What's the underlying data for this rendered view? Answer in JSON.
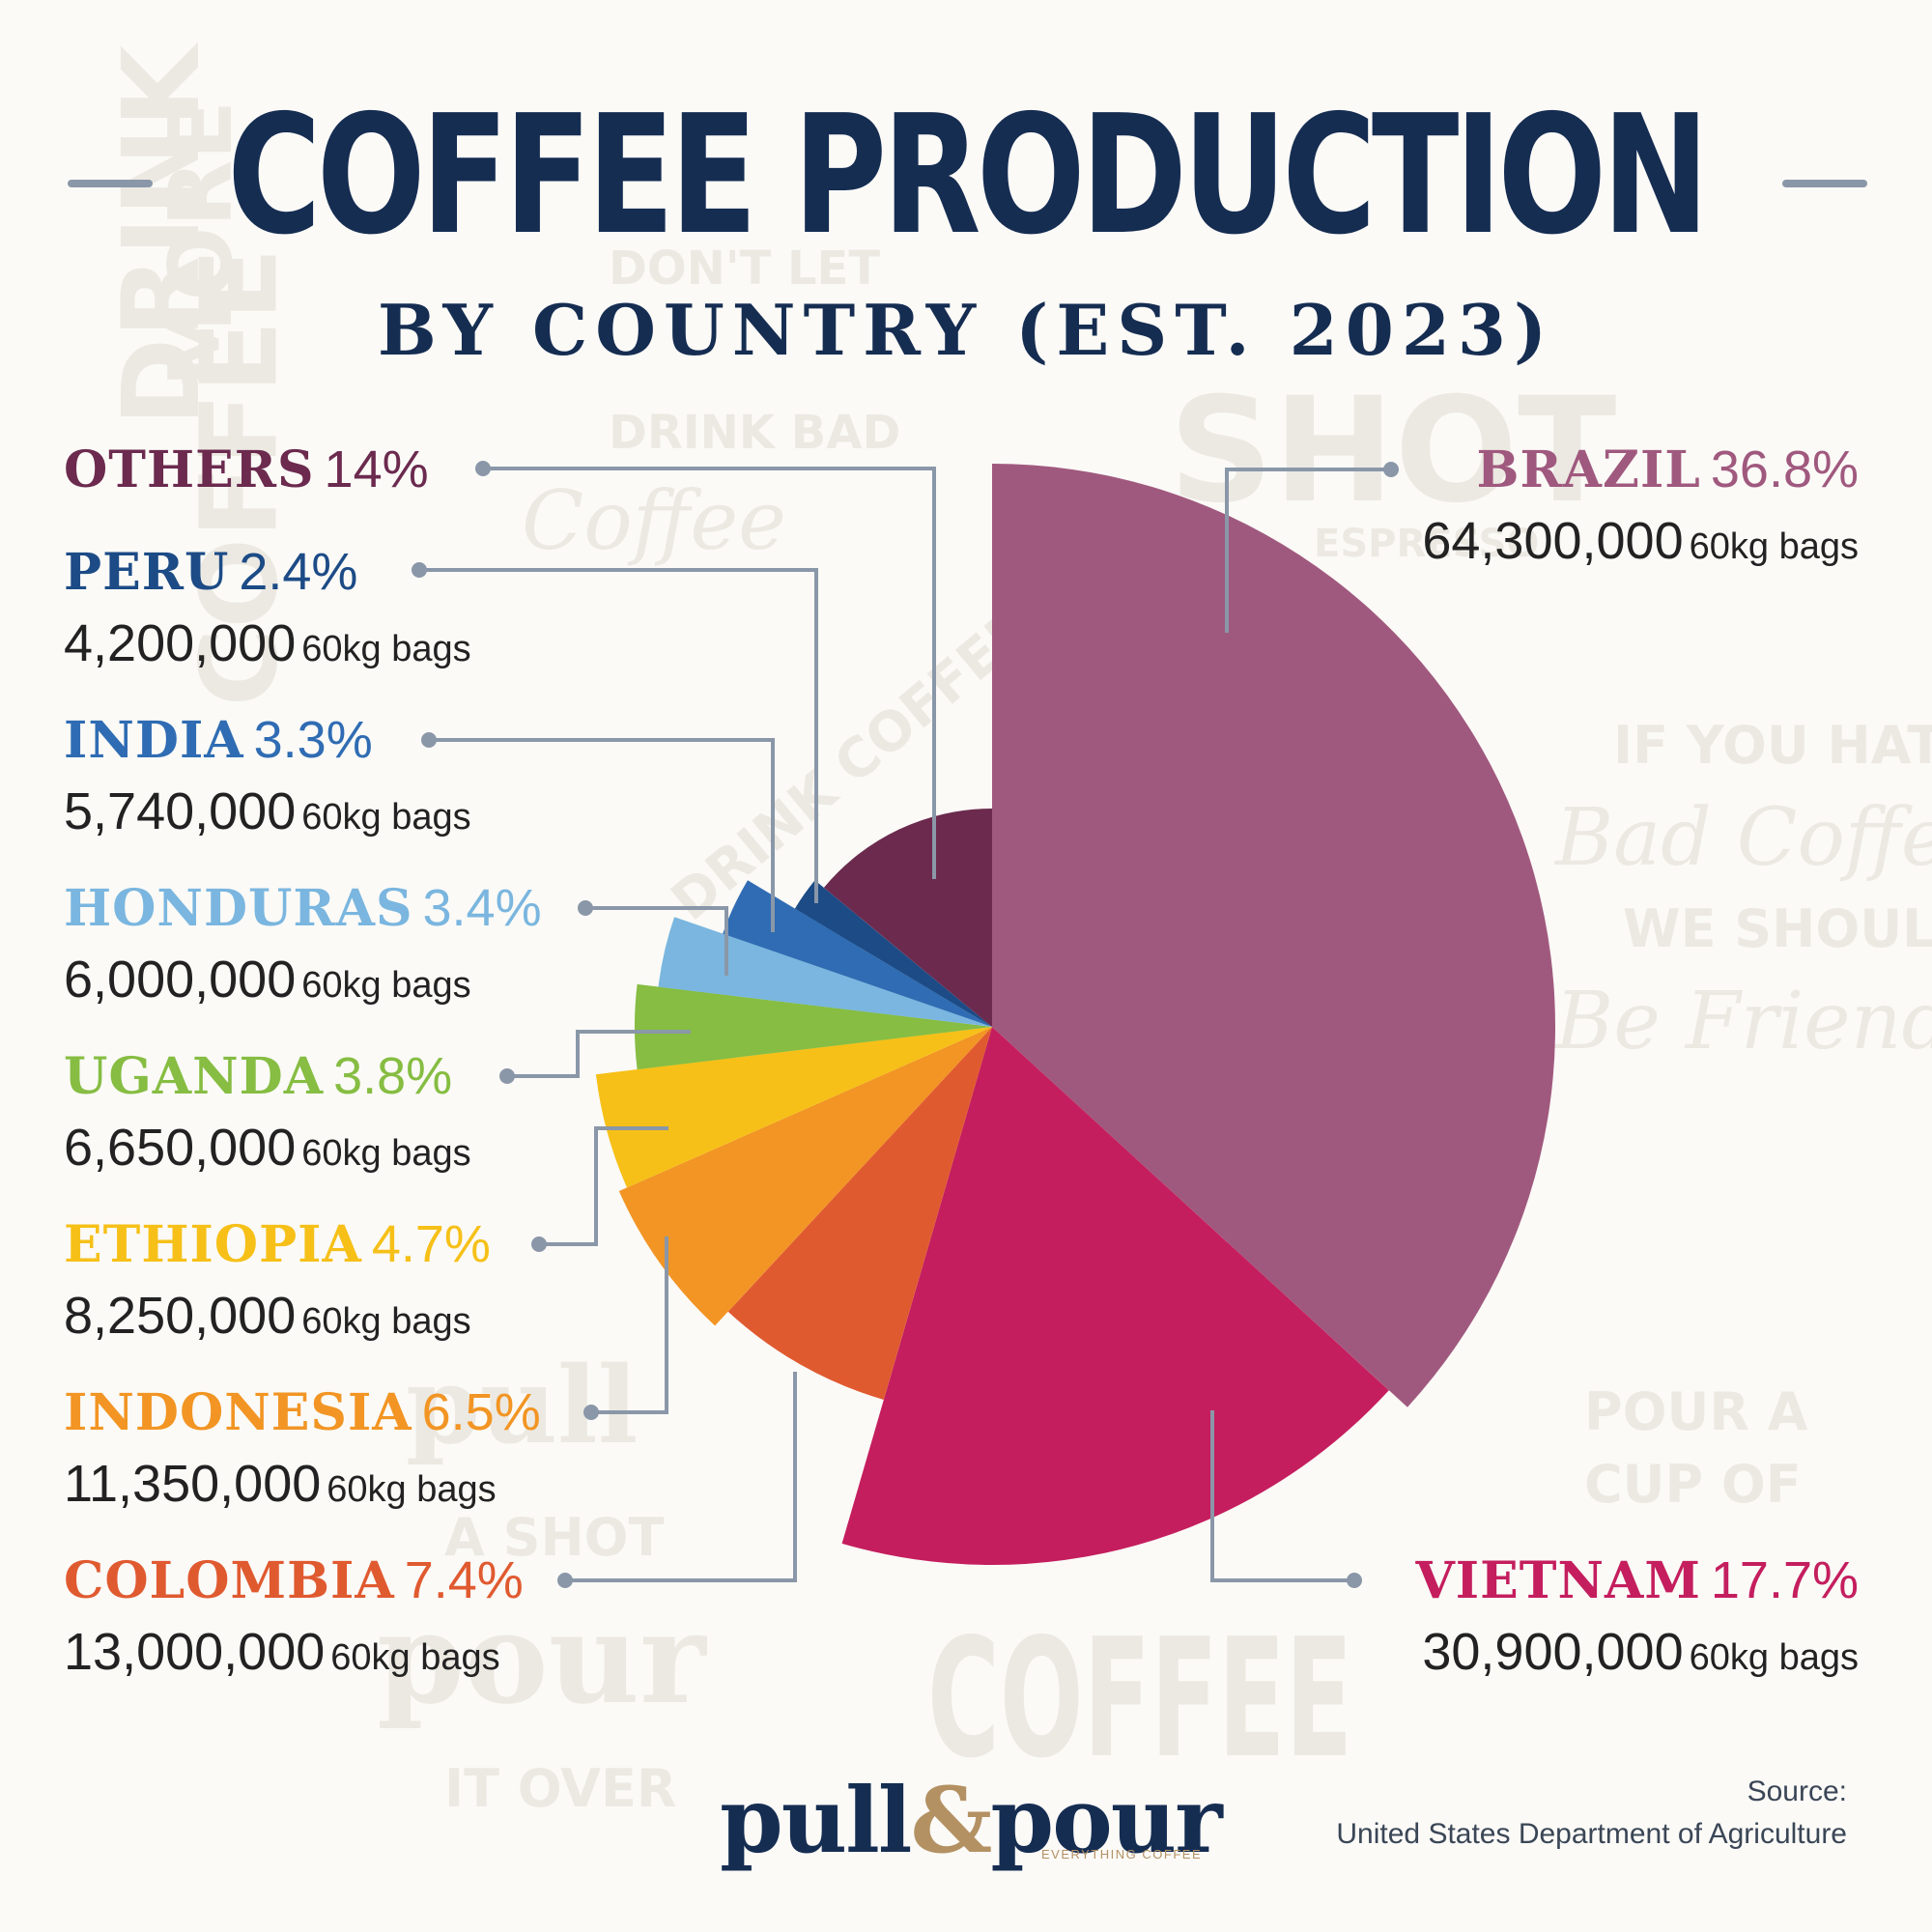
{
  "title": "COFFEE PRODUCTION",
  "subtitle": "BY COUNTRY (EST. 2023)",
  "unit_label": "60kg bags",
  "logo": {
    "name_left": "pull",
    "ampersand": "&",
    "name_right": "pour",
    "tagline": "EVERYTHING COFFEE"
  },
  "source": {
    "label": "Source:",
    "text": "United States Department of Agriculture"
  },
  "watermarks": [
    "DRINK",
    "MORE",
    "COFFEE",
    "DON'T LET",
    "DRINK BAD",
    "Coffee",
    "SHOT",
    "ESPRESSO",
    "IF YOU HATE",
    "Bad Coffee",
    "WE SHOULD",
    "Be Friends",
    "POUR A",
    "CUP OF",
    "A SHOT",
    "IT OVER",
    "COFFEE",
    "pull",
    "pour",
    "DRINK COFFEE"
  ],
  "colors": {
    "title": "#162d52",
    "leader": "#8a97a8",
    "logo_accent": "#b49163"
  },
  "chart_data": {
    "type": "pie",
    "title": "COFFEE PRODUCTION",
    "subtitle": "BY COUNTRY (EST. 2023)",
    "unit": "60kg bags",
    "slices": [
      {
        "name": "BRAZIL",
        "percent": 36.8,
        "pct_label": "36.8%",
        "bags": 64300000,
        "bags_label": "64,300,000",
        "color": "#a0597e"
      },
      {
        "name": "VIETNAM",
        "percent": 17.7,
        "pct_label": "17.7%",
        "bags": 30900000,
        "bags_label": "30,900,000",
        "color": "#c41e5e"
      },
      {
        "name": "COLOMBIA",
        "percent": 7.4,
        "pct_label": "7.4%",
        "bags": 13000000,
        "bags_label": "13,000,000",
        "color": "#e05a30"
      },
      {
        "name": "INDONESIA",
        "percent": 6.5,
        "pct_label": "6.5%",
        "bags": 11350000,
        "bags_label": "11,350,000",
        "color": "#f29524"
      },
      {
        "name": "ETHIOPIA",
        "percent": 4.7,
        "pct_label": "4.7%",
        "bags": 8250000,
        "bags_label": "8,250,000",
        "color": "#f6c018"
      },
      {
        "name": "UGANDA",
        "percent": 3.8,
        "pct_label": "3.8%",
        "bags": 6650000,
        "bags_label": "6,650,000",
        "color": "#86bd42"
      },
      {
        "name": "HONDURAS",
        "percent": 3.4,
        "pct_label": "3.4%",
        "bags": 6000000,
        "bags_label": "6,000,000",
        "color": "#7ab6df"
      },
      {
        "name": "INDIA",
        "percent": 3.3,
        "pct_label": "3.3%",
        "bags": 5740000,
        "bags_label": "5,740,000",
        "color": "#2f6cb3"
      },
      {
        "name": "PERU",
        "percent": 2.4,
        "pct_label": "2.4%",
        "bags": 4200000,
        "bags_label": "4,200,000",
        "color": "#1c4b86"
      },
      {
        "name": "OTHERS",
        "percent": 14,
        "pct_label": "14%",
        "color": "#6b2a4e"
      }
    ]
  }
}
